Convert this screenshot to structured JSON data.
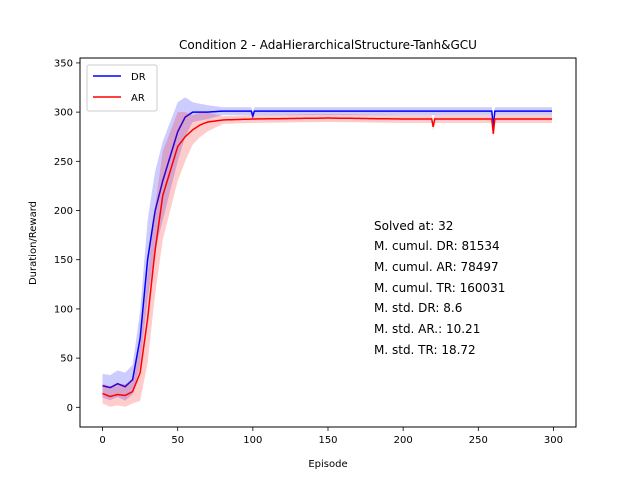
{
  "chart_data": {
    "type": "line",
    "title": "Condition 2 - AdaHierarchicalStructure-Tanh&GCU",
    "xlabel": "Episode",
    "ylabel": "Duration/Reward",
    "xlim": [
      -15,
      315
    ],
    "ylim": [
      -20,
      355
    ],
    "xticks": [
      0,
      50,
      100,
      150,
      200,
      250,
      300
    ],
    "yticks": [
      0,
      50,
      100,
      150,
      200,
      250,
      300,
      350
    ],
    "grid": false,
    "legend_position": "top-left",
    "series": [
      {
        "name": "DR",
        "color": "#0000ff",
        "band_color": "#0000ff",
        "points": [
          [
            0,
            22
          ],
          [
            5,
            20
          ],
          [
            10,
            24
          ],
          [
            15,
            21
          ],
          [
            20,
            28
          ],
          [
            25,
            70
          ],
          [
            30,
            150
          ],
          [
            35,
            200
          ],
          [
            40,
            230
          ],
          [
            45,
            255
          ],
          [
            50,
            280
          ],
          [
            55,
            295
          ],
          [
            60,
            300
          ],
          [
            65,
            300
          ],
          [
            70,
            300
          ],
          [
            80,
            301
          ],
          [
            100,
            301
          ],
          [
            150,
            301
          ],
          [
            200,
            301
          ],
          [
            250,
            301
          ],
          [
            300,
            301
          ]
        ],
        "std": [
          [
            0,
            12
          ],
          [
            20,
            15
          ],
          [
            30,
            40
          ],
          [
            40,
            40
          ],
          [
            50,
            30
          ],
          [
            60,
            10
          ],
          [
            80,
            4
          ],
          [
            300,
            4
          ]
        ],
        "spikes": [
          [
            100,
            296
          ],
          [
            260,
            285
          ]
        ]
      },
      {
        "name": "AR",
        "color": "#ff0000",
        "band_color": "#ff0000",
        "points": [
          [
            0,
            14
          ],
          [
            5,
            11
          ],
          [
            10,
            13
          ],
          [
            15,
            12
          ],
          [
            20,
            16
          ],
          [
            25,
            35
          ],
          [
            30,
            90
          ],
          [
            35,
            160
          ],
          [
            40,
            215
          ],
          [
            45,
            240
          ],
          [
            50,
            265
          ],
          [
            55,
            275
          ],
          [
            60,
            282
          ],
          [
            65,
            287
          ],
          [
            70,
            290
          ],
          [
            80,
            292
          ],
          [
            100,
            293
          ],
          [
            150,
            294
          ],
          [
            200,
            293
          ],
          [
            250,
            293
          ],
          [
            300,
            293
          ]
        ],
        "std": [
          [
            0,
            10
          ],
          [
            20,
            12
          ],
          [
            30,
            45
          ],
          [
            40,
            45
          ],
          [
            50,
            35
          ],
          [
            60,
            15
          ],
          [
            80,
            4
          ],
          [
            300,
            4
          ]
        ],
        "spikes": [
          [
            220,
            285
          ],
          [
            260,
            278
          ]
        ]
      }
    ],
    "annotations": [
      "Solved at: 32",
      "M. cumul. DR: 81534",
      "M. cumul. AR: 78497",
      "M. cumul. TR: 160031",
      "M. std. DR: 8.6",
      "M. std. AR.: 10.21",
      "M. std. TR: 18.72"
    ]
  }
}
